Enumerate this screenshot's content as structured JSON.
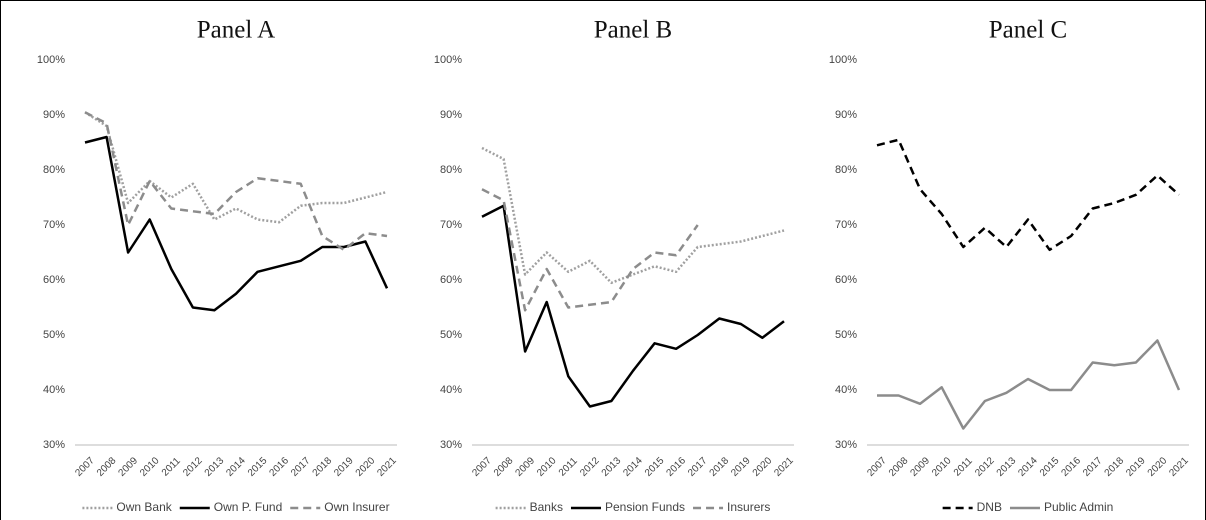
{
  "chart_data": [
    {
      "type": "line",
      "title": "Panel A",
      "categories": [
        "2007",
        "2008",
        "2009",
        "2010",
        "2011",
        "2012",
        "2013",
        "2014",
        "2015",
        "2016",
        "2017",
        "2018",
        "2019",
        "2020",
        "2021"
      ],
      "series": [
        {
          "name": "Own Bank",
          "color": "#a0a0a0",
          "dash": "dotted",
          "values": [
            90.5,
            88,
            74,
            78,
            75,
            77.5,
            71,
            73,
            71,
            70.5,
            73.5,
            74,
            74,
            75,
            76
          ]
        },
        {
          "name": "Own P. Fund",
          "color": "#000000",
          "dash": "solid",
          "values": [
            85,
            86,
            65,
            71,
            62,
            55,
            54.5,
            57.5,
            61.5,
            62.5,
            63.5,
            66,
            66,
            67,
            58.5
          ]
        },
        {
          "name": "Own Insurer",
          "color": "#8c8c8c",
          "dash": "dashed",
          "values": [
            90.5,
            88.5,
            70,
            78,
            73,
            72.5,
            72,
            76,
            78.5,
            78,
            77.5,
            68,
            65.5,
            68.5,
            68
          ]
        }
      ],
      "ylim": [
        30,
        100
      ],
      "yticks": [
        {
          "value": 30,
          "label": "30%"
        },
        {
          "value": 40,
          "label": "40%"
        },
        {
          "value": 50,
          "label": "50%"
        },
        {
          "value": 60,
          "label": "60%"
        },
        {
          "value": 70,
          "label": "70%"
        },
        {
          "value": 80,
          "label": "80%"
        },
        {
          "value": 90,
          "label": "90%"
        },
        {
          "value": 100,
          "label": "100%"
        }
      ],
      "grid": false,
      "legend": "bottom"
    },
    {
      "type": "line",
      "title": "Panel B",
      "categories": [
        "2007",
        "2008",
        "2009",
        "2010",
        "2011",
        "2012",
        "2013",
        "2014",
        "2015",
        "2016",
        "2017",
        "2018",
        "2019",
        "2020",
        "2021"
      ],
      "series": [
        {
          "name": "Banks",
          "color": "#a0a0a0",
          "dash": "dotted",
          "values": [
            84,
            82,
            61,
            65,
            61.5,
            63.5,
            59.5,
            61,
            62.5,
            61.5,
            66,
            66.5,
            67,
            68,
            69
          ]
        },
        {
          "name": "Pension Funds",
          "color": "#000000",
          "dash": "solid",
          "values": [
            71.5,
            73.5,
            47,
            56,
            42.5,
            37,
            38,
            43.5,
            48.5,
            47.5,
            50,
            53,
            52,
            49.5,
            52.5
          ]
        },
        {
          "name": "Insurers",
          "color": "#8c8c8c",
          "dash": "dashed",
          "values": [
            76.5,
            74.5,
            54.5,
            62,
            55,
            55.5,
            56,
            62,
            65,
            64.5,
            70,
            null,
            null,
            null,
            null
          ]
        }
      ],
      "ylim": [
        30,
        100
      ],
      "yticks": [
        {
          "value": 30,
          "label": "30%"
        },
        {
          "value": 40,
          "label": "40%"
        },
        {
          "value": 50,
          "label": "50%"
        },
        {
          "value": 60,
          "label": "60%"
        },
        {
          "value": 70,
          "label": "70%"
        },
        {
          "value": 80,
          "label": "80%"
        },
        {
          "value": 90,
          "label": "90%"
        },
        {
          "value": 100,
          "label": "100%"
        }
      ],
      "grid": false,
      "legend": "bottom"
    },
    {
      "type": "line",
      "title": "Panel C",
      "categories": [
        "2007",
        "2008",
        "2009",
        "2010",
        "2011",
        "2012",
        "2013",
        "2014",
        "2015",
        "2016",
        "2017",
        "2018",
        "2019",
        "2020",
        "2021"
      ],
      "series": [
        {
          "name": "DNB",
          "color": "#000000",
          "dash": "dashed",
          "values": [
            84.5,
            85.5,
            76.5,
            72,
            66,
            69.5,
            66,
            71,
            65.5,
            68,
            73,
            74,
            75.5,
            79,
            75.5
          ]
        },
        {
          "name": "Public Admin",
          "color": "#8c8c8c",
          "dash": "solid",
          "values": [
            39,
            39,
            37.5,
            40.5,
            33,
            38,
            39.5,
            42,
            40,
            40,
            45,
            44.5,
            45,
            49,
            40
          ]
        }
      ],
      "ylim": [
        30,
        100
      ],
      "yticks": [
        {
          "value": 30,
          "label": "30%"
        },
        {
          "value": 40,
          "label": "40%"
        },
        {
          "value": 50,
          "label": "50%"
        },
        {
          "value": 60,
          "label": "60%"
        },
        {
          "value": 70,
          "label": "70%"
        },
        {
          "value": 80,
          "label": "80%"
        },
        {
          "value": 90,
          "label": "90%"
        },
        {
          "value": 100,
          "label": "100%"
        }
      ],
      "grid": false,
      "legend": "bottom"
    }
  ]
}
